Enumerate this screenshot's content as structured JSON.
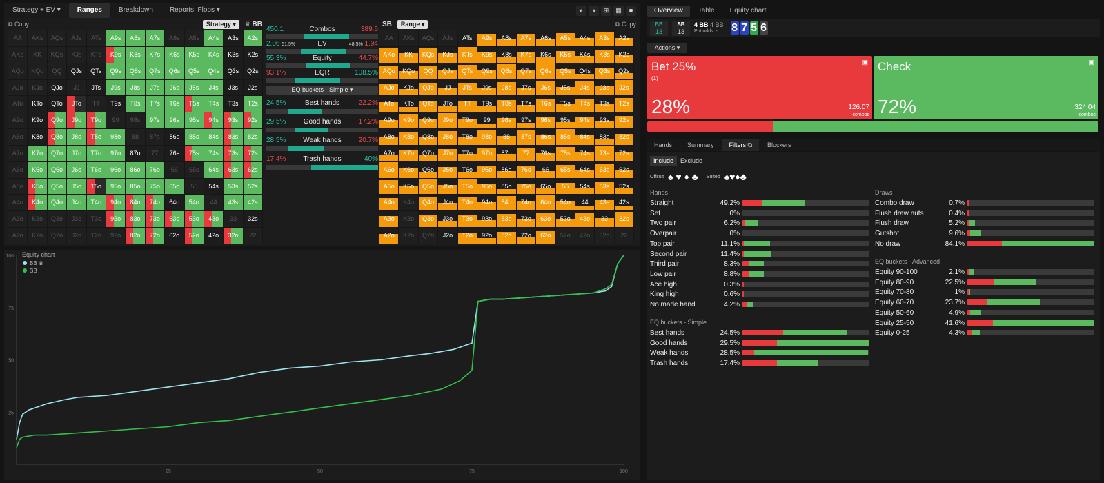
{
  "toolbar": {
    "tabs": [
      {
        "label": "Strategy + EV ▾"
      },
      {
        "label": "Ranges",
        "active": true
      },
      {
        "label": "Breakdown"
      },
      {
        "label": "Reports: Flops ▾"
      }
    ]
  },
  "left_header": {
    "copy": "Copy",
    "selector": "Strategy ▾",
    "position": "BB"
  },
  "right_header": {
    "position": "SB",
    "selector": "Range ▾",
    "copy": "Copy"
  },
  "hands": [
    "AA",
    "AKs",
    "AQs",
    "AJs",
    "ATs",
    "A9s",
    "A8s",
    "A7s",
    "A6s",
    "A5s",
    "A4s",
    "A3s",
    "A2s",
    "AKo",
    "KK",
    "KQs",
    "KJs",
    "KTs",
    "K9s",
    "K8s",
    "K7s",
    "K6s",
    "K5s",
    "K4s",
    "K3s",
    "K2s",
    "AQo",
    "KQo",
    "QQ",
    "QJs",
    "QTs",
    "Q9s",
    "Q8s",
    "Q7s",
    "Q6s",
    "Q5s",
    "Q4s",
    "Q3s",
    "Q2s",
    "AJo",
    "KJo",
    "QJo",
    "JJ",
    "JTs",
    "J9s",
    "J8s",
    "J7s",
    "J6s",
    "J5s",
    "J4s",
    "J3s",
    "J2s",
    "ATo",
    "KTo",
    "QTo",
    "JTo",
    "TT",
    "T9s",
    "T8s",
    "T7s",
    "T6s",
    "T5s",
    "T4s",
    "T3s",
    "T2s",
    "A9o",
    "K9o",
    "Q9o",
    "J9o",
    "T9o",
    "99",
    "98s",
    "97s",
    "96s",
    "95s",
    "94s",
    "93s",
    "92s",
    "A8o",
    "K8o",
    "Q8o",
    "J8o",
    "T8o",
    "98o",
    "88",
    "87s",
    "86s",
    "85s",
    "84s",
    "83s",
    "82s",
    "A7o",
    "K7o",
    "Q7o",
    "J7o",
    "T7o",
    "97o",
    "87o",
    "77",
    "76s",
    "75s",
    "74s",
    "73s",
    "72s",
    "A6o",
    "K6o",
    "Q6o",
    "J6o",
    "T6o",
    "96o",
    "86o",
    "76o",
    "66",
    "65s",
    "64s",
    "63s",
    "62s",
    "A5o",
    "K5o",
    "Q5o",
    "J5o",
    "T5o",
    "95o",
    "85o",
    "75o",
    "65o",
    "55",
    "54s",
    "53s",
    "52s",
    "A4o",
    "K4o",
    "Q4o",
    "J4o",
    "T4o",
    "94o",
    "84o",
    "74o",
    "64o",
    "54o",
    "44",
    "43s",
    "42s",
    "A3o",
    "K3o",
    "Q3o",
    "J3o",
    "T3o",
    "93o",
    "83o",
    "73o",
    "63o",
    "53o",
    "43o",
    "33",
    "32s",
    "A2o",
    "K2o",
    "Q2o",
    "J2o",
    "T2o",
    "92o",
    "82o",
    "72o",
    "62o",
    "52o",
    "42o",
    "32o",
    "22"
  ],
  "left_strategy": [
    "x",
    "x",
    "x",
    "x",
    "x",
    "g",
    "g",
    "g",
    "x",
    "x",
    "g",
    "w",
    "g",
    "x",
    "x",
    "x",
    "x",
    "x",
    "rg",
    "g",
    "g",
    "g",
    "g",
    "g",
    "w",
    "w",
    "x",
    "x",
    "x",
    "w",
    "w",
    "g",
    "g",
    "g",
    "g",
    "g",
    "g",
    "w",
    "w",
    "x",
    "x",
    "w",
    "x",
    "w",
    "g",
    "g",
    "g",
    "g",
    "g",
    "g",
    "w",
    "w",
    "x",
    "w",
    "w",
    "rw",
    "x",
    "w",
    "g",
    "g",
    "g",
    "rg",
    "g",
    "w",
    "g",
    "x",
    "w",
    "rg",
    "rg",
    "rg",
    "x",
    "x",
    "g",
    "g",
    "g",
    "rg",
    "rg",
    "rg",
    "x",
    "w",
    "rg",
    "g",
    "rg",
    "g",
    "x",
    "x",
    "w",
    "g",
    "g",
    "rg",
    "g",
    "x",
    "g",
    "g",
    "g",
    "g",
    "g",
    "w",
    "x",
    "w",
    "rg",
    "g",
    "rg",
    "rg",
    "x",
    "g",
    "g",
    "g",
    "g",
    "g",
    "g",
    "g",
    "x",
    "x",
    "g",
    "rg",
    "rg",
    "x",
    "rg",
    "g",
    "g",
    "rw",
    "g",
    "g",
    "g",
    "g",
    "x",
    "w",
    "g",
    "g",
    "x",
    "rg",
    "g",
    "g",
    "g",
    "rg",
    "rg",
    "rg",
    "w",
    "g",
    "x",
    "g",
    "g",
    "x",
    "x",
    "x",
    "x",
    "x",
    "rg",
    "rg",
    "rg",
    "rg",
    "rg",
    "rg",
    "x",
    "w",
    "x",
    "x",
    "x",
    "x",
    "x",
    "x",
    "rg",
    "rg",
    "w",
    "rg",
    "w",
    "rg",
    "x",
    "x"
  ],
  "right_range": [
    "x",
    "x",
    "x",
    "x",
    "w",
    "o",
    "o",
    "o",
    "o",
    "o",
    "o",
    "o",
    "o",
    "o",
    "o",
    "o",
    "o",
    "o",
    "o",
    "o",
    "o",
    "o",
    "o",
    "o",
    "o",
    "o",
    "o",
    "o",
    "o",
    "o",
    "o",
    "o",
    "o",
    "o",
    "o",
    "o",
    "o",
    "o",
    "o",
    "o",
    "o",
    "o",
    "o",
    "o",
    "o",
    "o",
    "o",
    "o",
    "o",
    "o",
    "o",
    "o",
    "o",
    "o",
    "o",
    "o",
    "o",
    "o",
    "o",
    "o",
    "o",
    "o",
    "o",
    "o",
    "o",
    "o",
    "o",
    "o",
    "o",
    "o",
    "o",
    "o",
    "o",
    "o",
    "o",
    "o",
    "o",
    "o",
    "o",
    "o",
    "o",
    "o",
    "o",
    "o",
    "o",
    "o",
    "o",
    "o",
    "o",
    "o",
    "o",
    "o",
    "o",
    "o",
    "o",
    "o",
    "o",
    "o",
    "o",
    "o",
    "o",
    "o",
    "o",
    "o",
    "o",
    "o",
    "o",
    "o",
    "o",
    "o",
    "o",
    "o",
    "o",
    "o",
    "o",
    "o",
    "o",
    "o",
    "o",
    "o",
    "o",
    "o",
    "o",
    "o",
    "o",
    "o",
    "o",
    "o",
    "o",
    "o",
    "o",
    "x",
    "o",
    "o",
    "o",
    "o",
    "o",
    "o",
    "o",
    "o",
    "o",
    "o",
    "o",
    "o",
    "x",
    "o",
    "o",
    "o",
    "o",
    "o",
    "o",
    "o",
    "o",
    "o",
    "o",
    "o",
    "o",
    "x",
    "x",
    "w",
    "o",
    "o",
    "o",
    "o",
    "o",
    "x",
    "x",
    "x",
    "x",
    "x",
    "x"
  ],
  "stats": [
    {
      "left": "450.1",
      "label": "Combos",
      "right": "389.6",
      "fill": 0.54
    },
    {
      "left": "2.06",
      "lsub": "51.5%",
      "label": "EV",
      "rsub": "48.5%",
      "right": "1.94",
      "fill": 0.51
    },
    {
      "left": "55.3%",
      "label": "Equity",
      "right": "44.7%",
      "fill": 0.55
    },
    {
      "left": "93.1%",
      "label": "EQR",
      "right": "108.5%",
      "fill": 0.46
    }
  ],
  "eq_selector": "EQ buckets - Simple ▾",
  "buckets": [
    {
      "left": "24.5%",
      "label": "Best hands",
      "right": "22.2%"
    },
    {
      "left": "29.5%",
      "label": "Good hands",
      "right": "17.2%"
    },
    {
      "left": "28.5%",
      "label": "Weak hands",
      "right": "20.7%"
    },
    {
      "left": "17.4%",
      "label": "Trash hands",
      "right": "40%"
    }
  ],
  "right_tabs": [
    {
      "label": "Overview",
      "active": true
    },
    {
      "label": "Table"
    },
    {
      "label": "Equity chart"
    }
  ],
  "info": {
    "bb_label": "BB",
    "bb_val": "13",
    "sb_label": "SB",
    "sb_val": "13",
    "pot": "4 BB",
    "pot2": "4 BB",
    "pot_odds_label": "Pot odds:",
    "pot_odds_val": "-",
    "board": [
      {
        "r": "8",
        "c": "#2b45c2"
      },
      {
        "r": "7",
        "c": "#2b45c2"
      },
      {
        "r": "5",
        "c": "#2ea84a"
      },
      {
        "r": "6",
        "c": "#444444"
      }
    ]
  },
  "actions_button": "Actions ▾",
  "actions": [
    {
      "name": "Bet 25%",
      "sub": "(1)",
      "pct": "28%",
      "combos": "126.07",
      "combos_label": "combos",
      "color": "#e8393c"
    },
    {
      "name": "Check",
      "sub": "",
      "pct": "72%",
      "combos": "324.04",
      "combos_label": "combos",
      "color": "#5bb95f"
    }
  ],
  "filter_tabs": [
    {
      "label": "Hands"
    },
    {
      "label": "Summary"
    },
    {
      "label": "Filters ⧉",
      "active": true
    },
    {
      "label": "Blockers"
    }
  ],
  "filter": {
    "include": "Include",
    "exclude": "Exclude",
    "offsuit": "Offsuit",
    "suited": "Suited",
    "offsuit_suits": "♠ ♥ ♦ ♣",
    "suited_suits": "♠♥♦♣"
  },
  "hands_section": {
    "title": "Hands",
    "rows": [
      {
        "l": "Straight",
        "v": "49.2%",
        "r": 0.16,
        "g": 0.33
      },
      {
        "l": "Set",
        "v": "0%",
        "r": 0,
        "g": 0
      },
      {
        "l": "Two pair",
        "v": "6.2%",
        "r": 0.02,
        "g": 0.1
      },
      {
        "l": "Overpair",
        "v": "0%",
        "r": 0,
        "g": 0
      },
      {
        "l": "Top pair",
        "v": "11.1%",
        "r": 0.01,
        "g": 0.21
      },
      {
        "l": "Second pair",
        "v": "11.4%",
        "r": 0.01,
        "g": 0.22
      },
      {
        "l": "Third pair",
        "v": "8.3%",
        "r": 0.05,
        "g": 0.12
      },
      {
        "l": "Low pair",
        "v": "8.8%",
        "r": 0.05,
        "g": 0.12
      },
      {
        "l": "Ace high",
        "v": "0.3%",
        "r": 0.01,
        "g": 0
      },
      {
        "l": "King high",
        "v": "0.6%",
        "r": 0.01,
        "g": 0
      },
      {
        "l": "No made hand",
        "v": "4.2%",
        "r": 0.03,
        "g": 0.05
      }
    ]
  },
  "eq_simple": {
    "title": "EQ buckets - Simple",
    "rows": [
      {
        "l": "Best hands",
        "v": "24.5%",
        "r": 0.32,
        "g": 0.5
      },
      {
        "l": "Good hands",
        "v": "29.5%",
        "r": 0.27,
        "g": 0.73
      },
      {
        "l": "Weak hands",
        "v": "28.5%",
        "r": 0.09,
        "g": 0.9
      },
      {
        "l": "Trash hands",
        "v": "17.4%",
        "r": 0.27,
        "g": 0.33
      }
    ]
  },
  "draws": {
    "title": "Draws",
    "rows": [
      {
        "l": "Combo draw",
        "v": "0.7%",
        "r": 0.01,
        "g": 0
      },
      {
        "l": "Flush draw nuts",
        "v": "0.4%",
        "r": 0.01,
        "g": 0
      },
      {
        "l": "Flush draw",
        "v": "5.2%",
        "r": 0.01,
        "g": 0.05
      },
      {
        "l": "Gutshot",
        "v": "9.6%",
        "r": 0.02,
        "g": 0.09
      },
      {
        "l": "No draw",
        "v": "84.1%",
        "r": 0.27,
        "g": 0.73
      }
    ]
  },
  "eq_advanced": {
    "title": "EQ buckets - Advanced",
    "rows": [
      {
        "l": "Equity 90-100",
        "v": "2.1%",
        "r": 0.01,
        "g": 0.04
      },
      {
        "l": "Equity 80-90",
        "v": "22.5%",
        "r": 0.21,
        "g": 0.33
      },
      {
        "l": "Equity 70-80",
        "v": "1%",
        "r": 0.01,
        "g": 0.01
      },
      {
        "l": "Equity 60-70",
        "v": "23.7%",
        "r": 0.16,
        "g": 0.41
      },
      {
        "l": "Equity 50-60",
        "v": "4.9%",
        "r": 0.02,
        "g": 0.09
      },
      {
        "l": "Equity 25-50",
        "v": "41.6%",
        "r": 0.2,
        "g": 0.8
      },
      {
        "l": "Equity 0-25",
        "v": "4.3%",
        "r": 0.04,
        "g": 0.06
      }
    ]
  },
  "chart_data": {
    "type": "line",
    "title": "Equity chart",
    "x_ticks": [
      "25",
      "50",
      "75",
      "100"
    ],
    "y_ticks": [
      "100",
      "75",
      "50",
      "25"
    ],
    "xlim": [
      0,
      100
    ],
    "ylim": [
      0,
      100
    ],
    "series": [
      {
        "name": "BB ♛",
        "color": "#9ee4f2",
        "x": [
          0,
          0.5,
          1,
          2,
          3,
          5,
          8,
          10,
          15,
          20,
          25,
          30,
          35,
          40,
          45,
          50,
          55,
          60,
          65,
          68,
          70,
          72,
          74,
          75,
          76,
          78,
          80,
          85,
          90,
          95,
          97,
          98,
          99,
          100
        ],
        "y": [
          12,
          20,
          24,
          26,
          27,
          29,
          31,
          32,
          33,
          35,
          37,
          39,
          41,
          44,
          46,
          47,
          49,
          50,
          52,
          53,
          54,
          55,
          57,
          58,
          78,
          79,
          79,
          80,
          81,
          82,
          83,
          85,
          96,
          100
        ]
      },
      {
        "name": "SB",
        "color": "#33c04b",
        "x": [
          0,
          0.5,
          1,
          3,
          5,
          10,
          15,
          20,
          25,
          30,
          35,
          40,
          45,
          50,
          55,
          60,
          65,
          70,
          73,
          75,
          76,
          78,
          80,
          85,
          90,
          95,
          97,
          98,
          99,
          100
        ],
        "y": [
          8,
          12,
          13,
          14,
          14,
          15,
          16,
          17,
          18,
          20,
          21,
          23,
          25,
          27,
          29,
          31,
          33,
          36,
          40,
          45,
          78,
          79,
          79,
          80,
          81,
          82,
          84,
          86,
          96,
          100
        ]
      }
    ]
  }
}
